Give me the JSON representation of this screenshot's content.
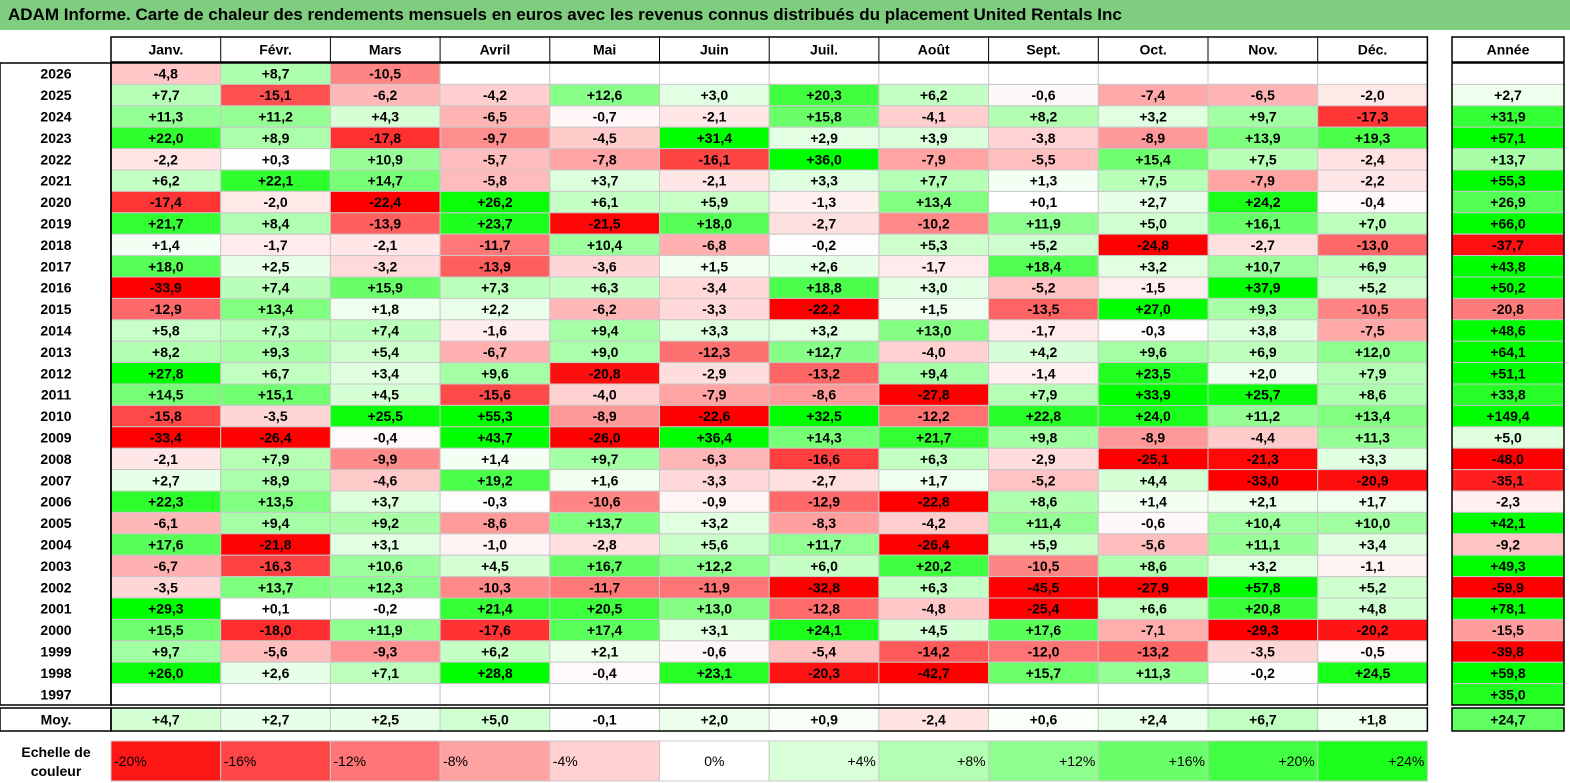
{
  "chart_data": {
    "type": "heatmap",
    "title": "ADAM Informe. Carte de chaleur des rendements mensuels en euros avec les revenus connus distribués du placement United Rentals Inc",
    "columns": [
      "Janv.",
      "Févr.",
      "Mars",
      "Avril",
      "Mai",
      "Juin",
      "Juil.",
      "Août",
      "Sept.",
      "Oct.",
      "Nov.",
      "Déc."
    ],
    "year_column": "Année",
    "rows": [
      {
        "label": "2026",
        "values": [
          "-4,8",
          "+8,7",
          "-10,5",
          "",
          "",
          "",
          "",
          "",
          "",
          "",
          "",
          ""
        ],
        "year": ""
      },
      {
        "label": "2025",
        "values": [
          "+7,7",
          "-15,1",
          "-6,2",
          "-4,2",
          "+12,6",
          "+3,0",
          "+20,3",
          "+6,2",
          "-0,6",
          "-7,4",
          "-6,5",
          "-2,0"
        ],
        "year": "+2,7"
      },
      {
        "label": "2024",
        "values": [
          "+11,3",
          "+11,2",
          "+4,3",
          "-6,5",
          "-0,7",
          "-2,1",
          "+15,8",
          "-4,1",
          "+8,2",
          "+3,2",
          "+9,7",
          "-17,3"
        ],
        "year": "+31,9"
      },
      {
        "label": "2023",
        "values": [
          "+22,0",
          "+8,9",
          "-17,8",
          "-9,7",
          "-4,5",
          "+31,4",
          "+2,9",
          "+3,9",
          "-3,8",
          "-8,9",
          "+13,9",
          "+19,3"
        ],
        "year": "+57,1"
      },
      {
        "label": "2022",
        "values": [
          "-2,2",
          "+0,3",
          "+10,9",
          "-5,7",
          "-7,8",
          "-16,1",
          "+36,0",
          "-7,9",
          "-5,5",
          "+15,4",
          "+7,5",
          "-2,4"
        ],
        "year": "+13,7"
      },
      {
        "label": "2021",
        "values": [
          "+6,2",
          "+22,1",
          "+14,7",
          "-5,8",
          "+3,7",
          "-2,1",
          "+3,3",
          "+7,7",
          "+1,3",
          "+7,5",
          "-7,9",
          "-2,2"
        ],
        "year": "+55,3"
      },
      {
        "label": "2020",
        "values": [
          "-17,4",
          "-2,0",
          "-22,4",
          "+26,2",
          "+6,1",
          "+5,9",
          "-1,3",
          "+13,4",
          "+0,1",
          "+2,7",
          "+24,2",
          "-0,4"
        ],
        "year": "+26,9"
      },
      {
        "label": "2019",
        "values": [
          "+21,7",
          "+8,4",
          "-13,9",
          "+23,7",
          "-21,5",
          "+18,0",
          "-2,7",
          "-10,2",
          "+11,9",
          "+5,0",
          "+16,1",
          "+7,0"
        ],
        "year": "+66,0"
      },
      {
        "label": "2018",
        "values": [
          "+1,4",
          "-1,7",
          "-2,1",
          "-11,7",
          "+10,4",
          "-6,8",
          "-0,2",
          "+5,3",
          "+5,2",
          "-24,8",
          "-2,7",
          "-13,0"
        ],
        "year": "-37,7"
      },
      {
        "label": "2017",
        "values": [
          "+18,0",
          "+2,5",
          "-3,2",
          "-13,9",
          "-3,6",
          "+1,5",
          "+2,6",
          "-1,7",
          "+18,4",
          "+3,2",
          "+10,7",
          "+6,9"
        ],
        "year": "+43,8"
      },
      {
        "label": "2016",
        "values": [
          "-33,9",
          "+7,4",
          "+15,9",
          "+7,3",
          "+6,3",
          "-3,4",
          "+18,8",
          "+3,0",
          "-5,2",
          "-1,5",
          "+37,9",
          "+5,2"
        ],
        "year": "+50,2"
      },
      {
        "label": "2015",
        "values": [
          "-12,9",
          "+13,4",
          "+1,8",
          "+2,2",
          "-6,2",
          "-3,3",
          "-22,2",
          "+1,5",
          "-13,5",
          "+27,0",
          "+9,3",
          "-10,5"
        ],
        "year": "-20,8"
      },
      {
        "label": "2014",
        "values": [
          "+5,8",
          "+7,3",
          "+7,4",
          "-1,6",
          "+9,4",
          "+3,3",
          "+3,2",
          "+13,0",
          "-1,7",
          "-0,3",
          "+3,8",
          "-7,5"
        ],
        "year": "+48,6"
      },
      {
        "label": "2013",
        "values": [
          "+8,2",
          "+9,3",
          "+5,4",
          "-6,7",
          "+9,0",
          "-12,3",
          "+12,7",
          "-4,0",
          "+4,2",
          "+9,6",
          "+6,9",
          "+12,0"
        ],
        "year": "+64,1"
      },
      {
        "label": "2012",
        "values": [
          "+27,8",
          "+6,7",
          "+3,4",
          "+9,6",
          "-20,8",
          "-2,9",
          "-13,2",
          "+9,4",
          "-1,4",
          "+23,5",
          "+2,0",
          "+7,9"
        ],
        "year": "+51,1"
      },
      {
        "label": "2011",
        "values": [
          "+14,5",
          "+15,1",
          "+4,5",
          "-15,6",
          "-4,0",
          "-7,9",
          "-8,6",
          "-27,8",
          "+7,9",
          "+33,9",
          "+25,7",
          "+8,6"
        ],
        "year": "+33,8"
      },
      {
        "label": "2010",
        "values": [
          "-15,8",
          "-3,5",
          "+25,5",
          "+55,3",
          "-8,9",
          "-22,6",
          "+32,5",
          "-12,2",
          "+22,8",
          "+24,0",
          "+11,2",
          "+13,4"
        ],
        "year": "+149,4"
      },
      {
        "label": "2009",
        "values": [
          "-33,4",
          "-26,4",
          "-0,4",
          "+43,7",
          "-26,0",
          "+36,4",
          "+14,3",
          "+21,7",
          "+9,8",
          "-8,9",
          "-4,4",
          "+11,3"
        ],
        "year": "+5,0"
      },
      {
        "label": "2008",
        "values": [
          "-2,1",
          "+7,9",
          "-9,9",
          "+1,4",
          "+9,7",
          "-6,3",
          "-16,6",
          "+6,3",
          "-2,9",
          "-25,1",
          "-21,3",
          "+3,3"
        ],
        "year": "-48,0"
      },
      {
        "label": "2007",
        "values": [
          "+2,7",
          "+8,9",
          "-4,6",
          "+19,2",
          "+1,6",
          "-3,3",
          "-2,7",
          "+1,7",
          "-5,2",
          "+4,4",
          "-33,0",
          "-20,9"
        ],
        "year": "-35,1"
      },
      {
        "label": "2006",
        "values": [
          "+22,3",
          "+13,5",
          "+3,7",
          "-0,3",
          "-10,6",
          "-0,9",
          "-12,9",
          "-22,8",
          "+8,6",
          "+1,4",
          "+2,1",
          "+1,7"
        ],
        "year": "-2,3"
      },
      {
        "label": "2005",
        "values": [
          "-6,1",
          "+9,4",
          "+9,2",
          "-8,6",
          "+13,7",
          "+3,2",
          "-8,3",
          "-4,2",
          "+11,4",
          "-0,6",
          "+10,4",
          "+10,0"
        ],
        "year": "+42,1"
      },
      {
        "label": "2004",
        "values": [
          "+17,6",
          "-21,8",
          "+3,1",
          "-1,0",
          "-2,8",
          "+5,6",
          "+11,7",
          "-26,4",
          "+5,9",
          "-5,6",
          "+11,1",
          "+3,4"
        ],
        "year": "-9,2"
      },
      {
        "label": "2003",
        "values": [
          "-6,7",
          "-16,3",
          "+10,6",
          "+4,5",
          "+16,7",
          "+12,2",
          "+6,0",
          "+20,2",
          "-10,5",
          "+8,6",
          "+3,2",
          "-1,1"
        ],
        "year": "+49,3"
      },
      {
        "label": "2002",
        "values": [
          "-3,5",
          "+13,7",
          "+12,3",
          "-10,3",
          "-11,7",
          "-11,9",
          "-32,8",
          "+6,3",
          "-45,5",
          "-27,9",
          "+57,8",
          "+5,2"
        ],
        "year": "-59,9"
      },
      {
        "label": "2001",
        "values": [
          "+29,3",
          "+0,1",
          "-0,2",
          "+21,4",
          "+20,5",
          "+13,0",
          "-12,8",
          "-4,8",
          "-25,4",
          "+6,6",
          "+20,8",
          "+4,8"
        ],
        "year": "+78,1"
      },
      {
        "label": "2000",
        "values": [
          "+15,5",
          "-18,0",
          "+11,9",
          "-17,6",
          "+17,4",
          "+3,1",
          "+24,1",
          "+4,5",
          "+17,6",
          "-7,1",
          "-29,3",
          "-20,2"
        ],
        "year": "-15,5"
      },
      {
        "label": "1999",
        "values": [
          "+9,7",
          "-5,6",
          "-9,3",
          "+6,2",
          "+2,1",
          "-0,6",
          "-5,4",
          "-14,2",
          "-12,0",
          "-13,2",
          "-3,5",
          "-0,5"
        ],
        "year": "-39,8"
      },
      {
        "label": "1998",
        "values": [
          "+26,0",
          "+2,6",
          "+7,1",
          "+28,8",
          "-0,4",
          "+23,1",
          "-20,3",
          "-42,7",
          "+15,7",
          "+11,3",
          "-0,2",
          "+24,5"
        ],
        "year": "+59,8"
      },
      {
        "label": "1997",
        "values": [
          "",
          "",
          "",
          "",
          "",
          "",
          "",
          "",
          "",
          "",
          "",
          ""
        ],
        "year": "+35,0"
      }
    ],
    "average_row": {
      "label": "Moy.",
      "values": [
        "+4,7",
        "+2,7",
        "+2,5",
        "+5,0",
        "-0,1",
        "+2,0",
        "+0,9",
        "-2,4",
        "+0,6",
        "+2,4",
        "+6,7",
        "+1,8"
      ],
      "year": "+24,7"
    },
    "scale": {
      "label_line1": "Echelle de",
      "label_line2": "couleur",
      "steps": [
        "-20%",
        "-16%",
        "-12%",
        "-8%",
        "-4%",
        "0%",
        "+4%",
        "+8%",
        "+12%",
        "+16%",
        "+20%",
        "+24%"
      ]
    }
  },
  "colors": {
    "neg_max": "#ff0000",
    "neutral": "#ffffff",
    "pos_max": "#00ff00",
    "title_bar": "#7fcd7f",
    "grid": "#c8c8c8",
    "border": "#000000"
  }
}
